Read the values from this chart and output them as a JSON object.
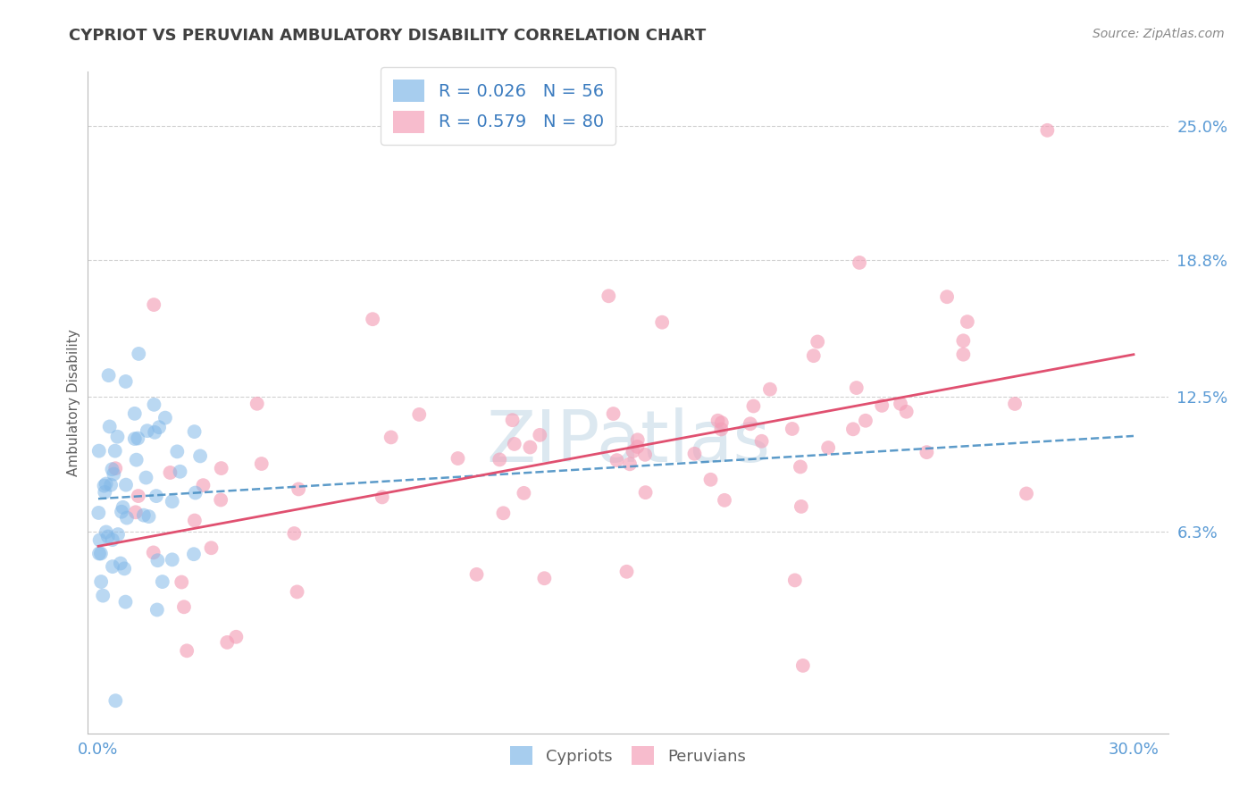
{
  "title": "CYPRIOT VS PERUVIAN AMBULATORY DISABILITY CORRELATION CHART",
  "source": "Source: ZipAtlas.com",
  "ylabel": "Ambulatory Disability",
  "right_yticks": [
    6.3,
    12.5,
    18.8,
    25.0
  ],
  "cypriot_color": "#82b8e8",
  "peruvian_color": "#f4a0b8",
  "cypriot_line_color": "#4a90c4",
  "peruvian_line_color": "#e05070",
  "cypriot_R": 0.026,
  "cypriot_N": 56,
  "peruvian_R": 0.579,
  "peruvian_N": 80,
  "xlim_min": -0.3,
  "xlim_max": 31.0,
  "ylim_min": -3.0,
  "ylim_max": 27.5,
  "background_color": "#ffffff",
  "grid_color": "#cccccc",
  "title_color": "#404040",
  "axis_label_color": "#5b9bd5",
  "right_label_color": "#5b9bd5",
  "watermark_color": "#dce8f0",
  "legend_label_color": "#3a7bbf",
  "bottom_legend_color": "#606060"
}
